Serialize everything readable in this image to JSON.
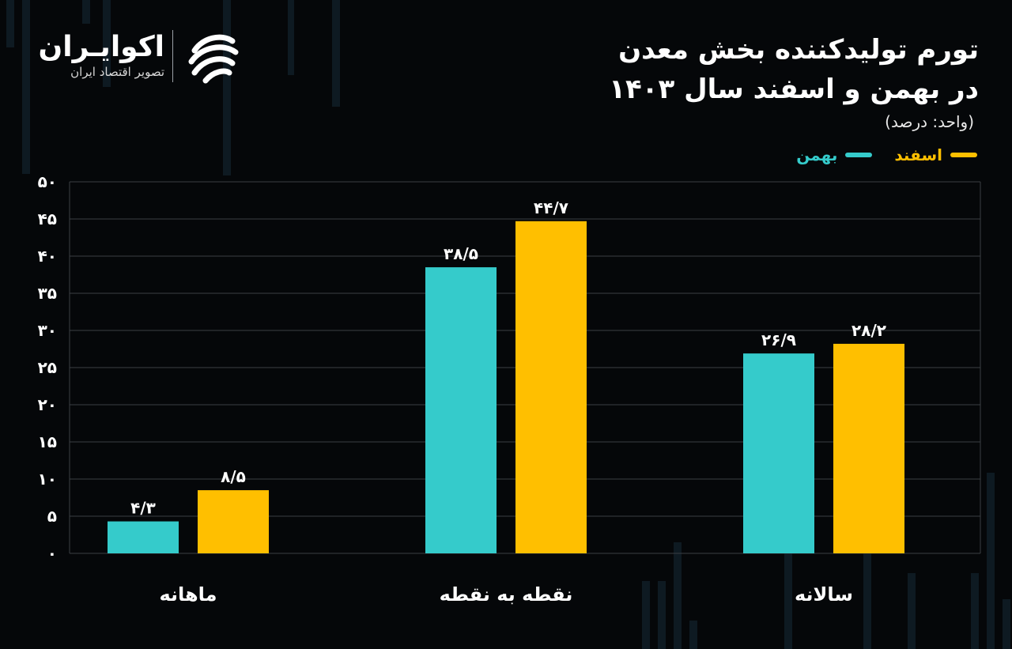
{
  "header": {
    "title_line1": "تورم تولیدکننده بخش معدن",
    "title_line2": "در بهمن و اسفند سال ۱۴۰۳",
    "unit": "(واحد: درصد)"
  },
  "logo": {
    "name": "اکوایـران",
    "tagline": "تصویر اقتصاد ایران",
    "icon": "ecoiran-swirl-logo"
  },
  "legend": [
    {
      "label": "اسفند",
      "color": "#FFBF00"
    },
    {
      "label": "بهمن",
      "color": "#35CBCB"
    }
  ],
  "chart_data": {
    "type": "bar",
    "title": "تورم تولیدکننده بخش معدن در بهمن و اسفند سال ۱۴۰۳",
    "ylabel": "(واحد: درصد)",
    "ylim": [
      0,
      50
    ],
    "yticks": [
      0,
      5,
      10,
      15,
      20,
      25,
      30,
      35,
      40,
      45,
      50
    ],
    "ytick_labels": [
      "۰",
      "۵",
      "۱۰",
      "۱۵",
      "۲۰",
      "۲۵",
      "۳۰",
      "۳۵",
      "۴۰",
      "۴۵",
      "۵۰"
    ],
    "grid": true,
    "legend_position": "top-right",
    "categories": [
      "ماهانه",
      "نقطه به نقطه",
      "سالانه"
    ],
    "series": [
      {
        "name": "بهمن",
        "color": "#35CBCB",
        "values": [
          4.3,
          38.5,
          26.9
        ],
        "labels": [
          "۴/۳",
          "۳۸/۵",
          "۲۶/۹"
        ]
      },
      {
        "name": "اسفند",
        "color": "#FFBF00",
        "values": [
          8.5,
          44.7,
          28.2
        ],
        "labels": [
          "۸/۵",
          "۴۴/۷",
          "۲۸/۲"
        ]
      }
    ]
  }
}
